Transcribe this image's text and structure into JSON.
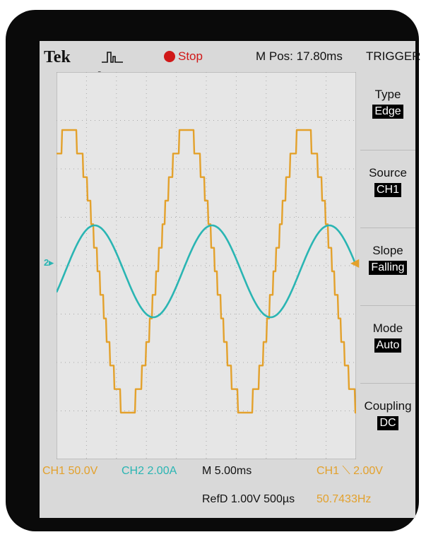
{
  "brand": "Tek",
  "run_state": "Stop",
  "m_pos": "M Pos: 17.80ms",
  "trigger_menu": {
    "title": "TRIGGER",
    "items": [
      {
        "label": "Type",
        "value": "Edge"
      },
      {
        "label": "Source",
        "value": "CH1"
      },
      {
        "label": "Slope",
        "value": "Falling"
      },
      {
        "label": "Mode",
        "value": "Auto"
      },
      {
        "label": "Coupling",
        "value": "DC"
      }
    ]
  },
  "status": {
    "ch1_scale": "CH1  50.0V",
    "ch2_scale": "CH2  2.00A",
    "timebase": "M 5.00ms",
    "trigger_readout": "CH1 ⟍ 2.00V",
    "ref": "RefD 1.00V 500µs",
    "frequency": "50.7433Hz"
  },
  "colors": {
    "ch1": "#e3a12c",
    "ch2": "#2ab5b3",
    "stop": "#d01818"
  }
}
